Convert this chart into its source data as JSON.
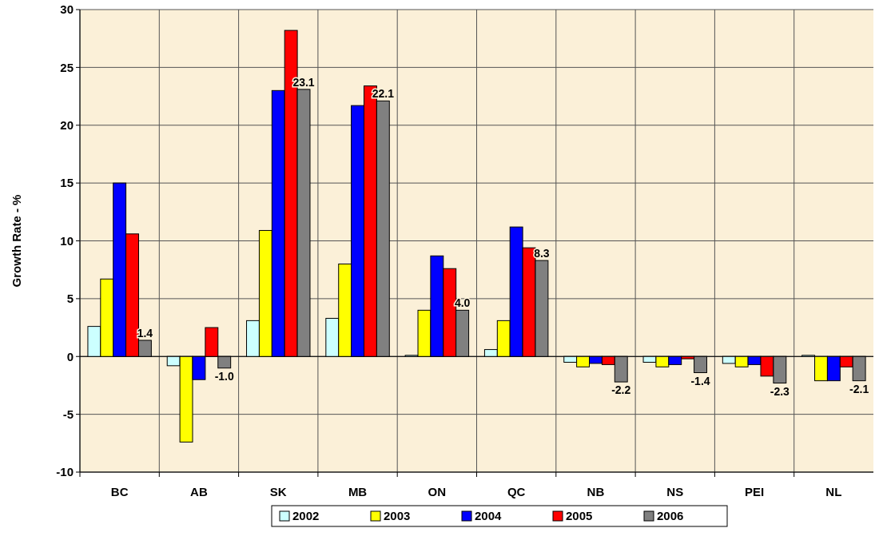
{
  "chart_data": {
    "type": "bar",
    "ylabel": "Growth Rate - %",
    "categories": [
      "BC",
      "AB",
      "SK",
      "MB",
      "ON",
      "QC",
      "NB",
      "NS",
      "PEI",
      "NL"
    ],
    "series": [
      {
        "name": "2002",
        "color": "#ccffff",
        "values": [
          2.6,
          -0.8,
          3.1,
          3.3,
          0.1,
          0.6,
          -0.5,
          -0.5,
          -0.6,
          0.1
        ]
      },
      {
        "name": "2003",
        "color": "#ffff00",
        "values": [
          6.7,
          -7.4,
          10.9,
          8.0,
          4.0,
          3.1,
          -0.9,
          -0.9,
          -0.9,
          -2.1
        ]
      },
      {
        "name": "2004",
        "color": "#0000ff",
        "values": [
          15.0,
          -2.0,
          23.0,
          21.7,
          8.7,
          11.2,
          -0.6,
          -0.7,
          -0.7,
          -2.1
        ]
      },
      {
        "name": "2005",
        "color": "#ff0000",
        "values": [
          10.6,
          2.5,
          28.2,
          23.4,
          7.6,
          9.4,
          -0.7,
          -0.2,
          -1.7,
          -0.9
        ]
      },
      {
        "name": "2006",
        "color": "#808080",
        "values": [
          1.4,
          -1.0,
          23.1,
          22.1,
          4.0,
          8.3,
          -2.2,
          -1.4,
          -2.3,
          -2.1
        ],
        "value_labels": [
          "1.4",
          "-1.0",
          "23.1",
          "22.1",
          "4.0",
          "8.3",
          "-2.2",
          "-1.4",
          "-2.3",
          "-2.1"
        ]
      }
    ],
    "ylim": [
      -10,
      30
    ],
    "yticks": [
      -10,
      -5,
      0,
      5,
      10,
      15,
      20,
      25,
      30
    ],
    "grid": true,
    "legend": "bottom"
  }
}
